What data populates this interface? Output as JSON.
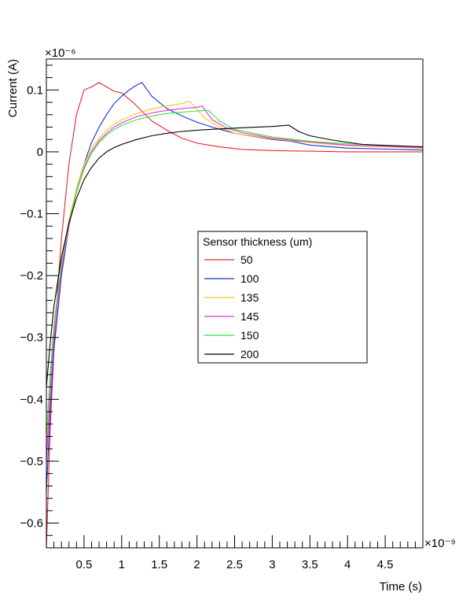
{
  "chart_data": {
    "type": "line",
    "title": "",
    "xlabel": "Time (s)",
    "ylabel": "Current (A)",
    "x_exponent": "×10⁻⁹",
    "y_exponent": "×10⁻⁶",
    "xlim": [
      0,
      5
    ],
    "ylim": [
      -0.64,
      0.15
    ],
    "xticks": [
      0.5,
      1,
      1.5,
      2,
      2.5,
      3,
      3.5,
      4,
      4.5
    ],
    "xtick_labels": [
      "0.5",
      "1",
      "1.5",
      "2",
      "2.5",
      "3",
      "3.5",
      "4",
      "4.5"
    ],
    "yticks": [
      -0.6,
      -0.5,
      -0.4,
      -0.3,
      -0.2,
      -0.1,
      0,
      0.1
    ],
    "ytick_labels": [
      "−0.6",
      "−0.5",
      "−0.4",
      "−0.3",
      "−0.2",
      "−0.1",
      "0",
      "0.1"
    ],
    "grid": false,
    "legend": {
      "title": "Sensor thickness (um)",
      "placement": "center-right"
    },
    "series": [
      {
        "name": "50",
        "color": "#e8262d",
        "x": [
          0.0,
          0.05,
          0.1,
          0.15,
          0.2,
          0.3,
          0.4,
          0.5,
          0.6,
          0.7,
          0.8,
          0.9,
          1.0,
          1.1,
          1.15,
          1.25,
          1.4,
          1.6,
          1.8,
          2.0,
          2.3,
          2.6,
          3.0,
          3.5,
          4.0,
          5.0
        ],
        "y": [
          -0.64,
          -0.45,
          -0.32,
          -0.22,
          -0.14,
          -0.02,
          0.06,
          0.1,
          0.105,
          0.112,
          0.105,
          0.098,
          0.095,
          0.085,
          0.08,
          0.068,
          0.05,
          0.035,
          0.022,
          0.014,
          0.008,
          0.004,
          0.002,
          0.001,
          0.0,
          0.0
        ]
      },
      {
        "name": "100",
        "color": "#1a2fd6",
        "x": [
          0.0,
          0.05,
          0.1,
          0.2,
          0.3,
          0.4,
          0.5,
          0.6,
          0.7,
          0.8,
          0.9,
          1.0,
          1.1,
          1.2,
          1.27,
          1.4,
          1.6,
          1.8,
          2.0,
          2.2,
          2.5,
          3.0,
          3.25,
          3.5,
          4.0,
          5.0
        ],
        "y": [
          -0.55,
          -0.42,
          -0.32,
          -0.2,
          -0.12,
          -0.06,
          -0.02,
          0.015,
          0.04,
          0.06,
          0.078,
          0.09,
          0.1,
          0.108,
          0.112,
          0.09,
          0.07,
          0.058,
          0.048,
          0.04,
          0.03,
          0.02,
          0.017,
          0.011,
          0.006,
          0.003
        ]
      },
      {
        "name": "135",
        "color": "#f5c518",
        "x": [
          0.0,
          0.05,
          0.1,
          0.2,
          0.3,
          0.4,
          0.5,
          0.6,
          0.7,
          0.8,
          0.9,
          1.0,
          1.2,
          1.4,
          1.6,
          1.8,
          1.9,
          2.1,
          2.3,
          2.5,
          3.0,
          3.5,
          4.0,
          5.0
        ],
        "y": [
          -0.49,
          -0.38,
          -0.29,
          -0.18,
          -0.11,
          -0.06,
          -0.02,
          0.005,
          0.022,
          0.035,
          0.045,
          0.052,
          0.062,
          0.069,
          0.074,
          0.078,
          0.082,
          0.055,
          0.04,
          0.03,
          0.021,
          0.015,
          0.01,
          0.006
        ]
      },
      {
        "name": "145",
        "color": "#ee2fe8",
        "x": [
          0.0,
          0.05,
          0.1,
          0.2,
          0.3,
          0.4,
          0.5,
          0.6,
          0.7,
          0.8,
          0.9,
          1.0,
          1.2,
          1.4,
          1.6,
          1.8,
          2.0,
          2.07,
          2.2,
          2.4,
          2.6,
          3.0,
          3.5,
          4.0,
          5.0
        ],
        "y": [
          -0.5,
          -0.39,
          -0.3,
          -0.19,
          -0.12,
          -0.065,
          -0.025,
          0.0,
          0.018,
          0.03,
          0.04,
          0.047,
          0.057,
          0.063,
          0.067,
          0.07,
          0.072,
          0.074,
          0.052,
          0.038,
          0.031,
          0.022,
          0.016,
          0.011,
          0.007
        ]
      },
      {
        "name": "150",
        "color": "#2ee836",
        "x": [
          0.0,
          0.05,
          0.1,
          0.2,
          0.3,
          0.4,
          0.5,
          0.6,
          0.7,
          0.8,
          0.9,
          1.0,
          1.2,
          1.4,
          1.6,
          1.8,
          2.0,
          2.15,
          2.3,
          2.5,
          3.0,
          3.5,
          4.0,
          5.0
        ],
        "y": [
          -0.46,
          -0.36,
          -0.28,
          -0.18,
          -0.115,
          -0.065,
          -0.028,
          -0.002,
          0.015,
          0.027,
          0.036,
          0.043,
          0.052,
          0.058,
          0.062,
          0.064,
          0.066,
          0.067,
          0.05,
          0.036,
          0.024,
          0.017,
          0.013,
          0.008
        ]
      },
      {
        "name": "200",
        "color": "#000000",
        "x": [
          0.0,
          0.05,
          0.1,
          0.2,
          0.3,
          0.4,
          0.5,
          0.6,
          0.7,
          0.8,
          0.9,
          1.0,
          1.2,
          1.4,
          1.6,
          1.8,
          2.0,
          2.3,
          2.6,
          3.0,
          3.22,
          3.35,
          3.5,
          3.8,
          4.2,
          5.0
        ],
        "y": [
          -0.38,
          -0.31,
          -0.25,
          -0.17,
          -0.115,
          -0.075,
          -0.045,
          -0.025,
          -0.01,
          0.0,
          0.007,
          0.012,
          0.02,
          0.026,
          0.03,
          0.033,
          0.035,
          0.037,
          0.039,
          0.041,
          0.043,
          0.033,
          0.026,
          0.019,
          0.012,
          0.008
        ]
      }
    ]
  }
}
